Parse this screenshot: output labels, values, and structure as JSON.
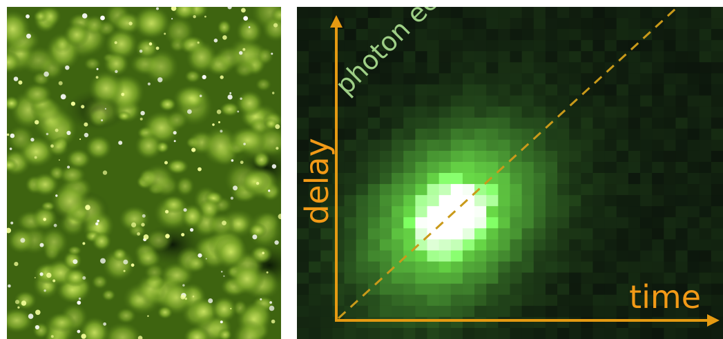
{
  "left_panel": {
    "icon": "micrograph-image",
    "tint": "#6a9a1c"
  },
  "right_panel": {
    "annotation": "photon echo",
    "x_axis_label": "time",
    "y_axis_label": "delay",
    "colors": {
      "axis": "#e59a12",
      "label": "#f29a17",
      "annotation": "#9ecf86",
      "signal": "#7dff4f",
      "background": "#0b140b"
    }
  }
}
